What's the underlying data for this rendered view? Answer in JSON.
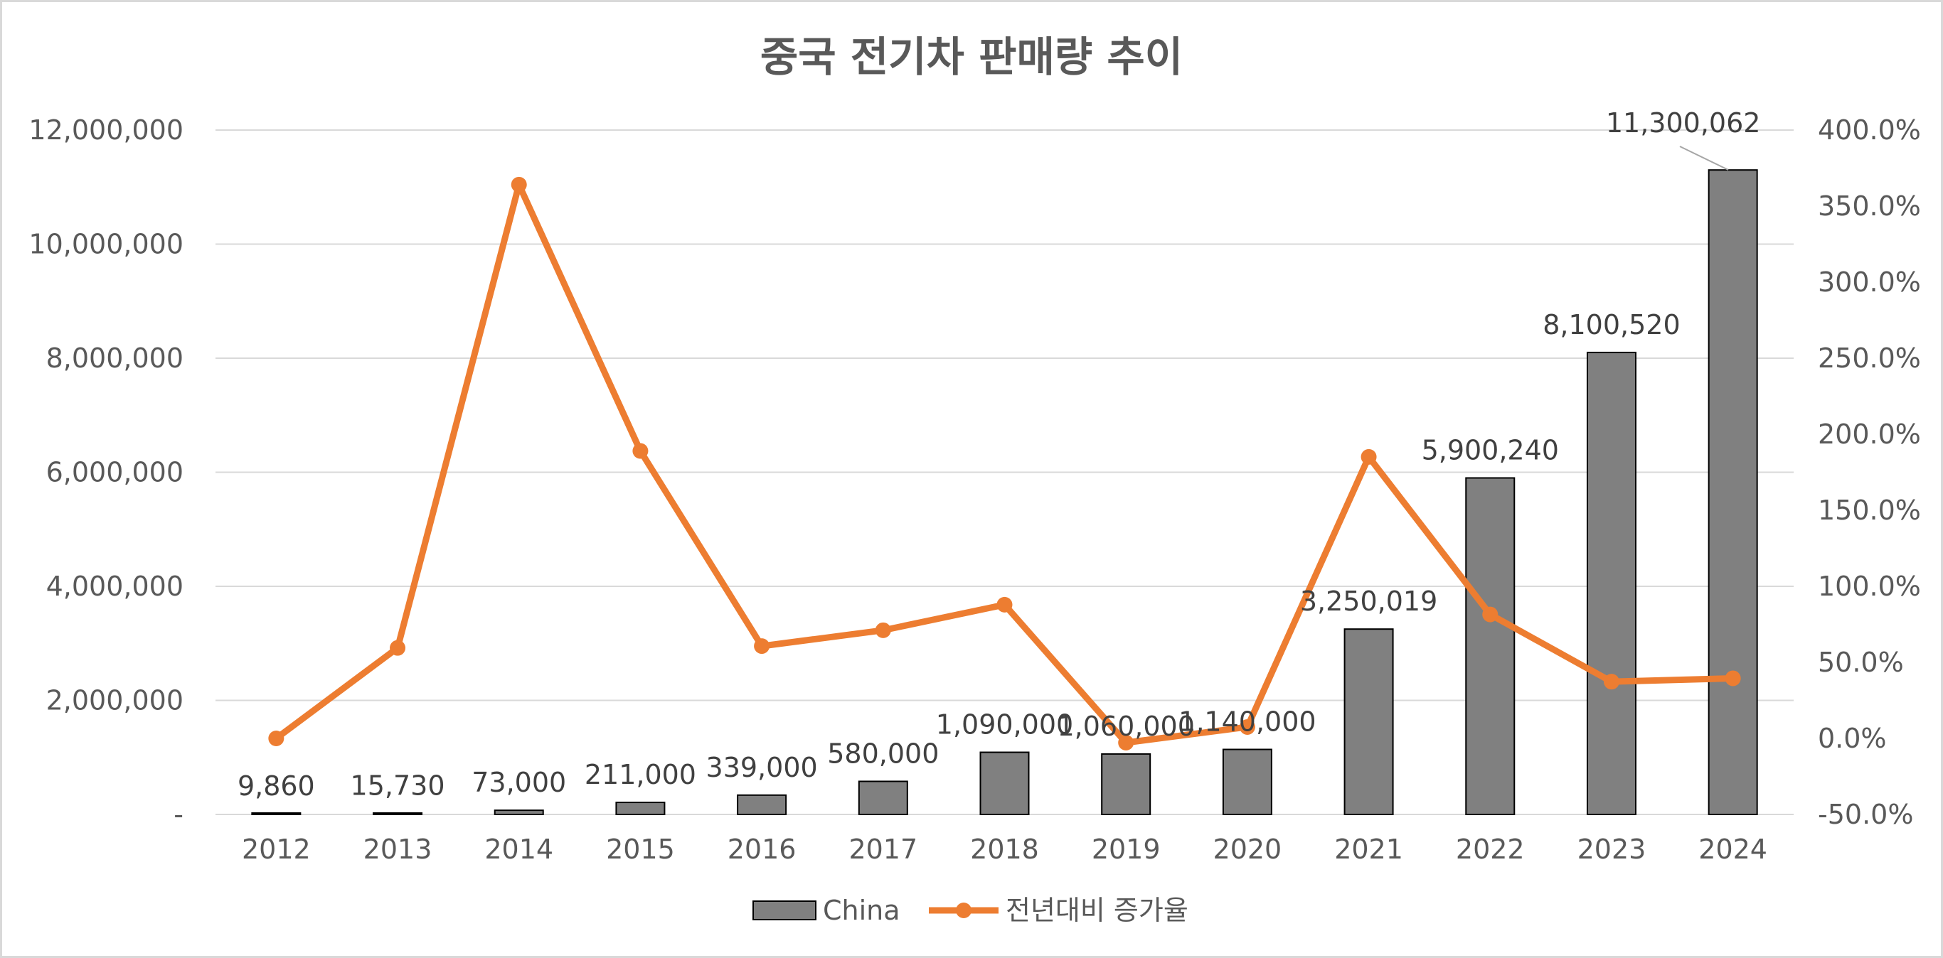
{
  "chart_data": {
    "type": "bar",
    "title": "중국 전기차 판매량 추이",
    "categories": [
      "2012",
      "2013",
      "2014",
      "2015",
      "2016",
      "2017",
      "2018",
      "2019",
      "2020",
      "2021",
      "2022",
      "2023",
      "2024"
    ],
    "series": [
      {
        "name": "China",
        "type": "bar",
        "axis": "left",
        "values": [
          9860,
          15730,
          73000,
          211000,
          339000,
          580000,
          1090000,
          1060000,
          1140000,
          3250019,
          5900240,
          8100520,
          11300062
        ],
        "labels": [
          "9,860",
          "15,730",
          "73,000",
          "211,000",
          "339,000",
          "580,000",
          "1,090,000",
          "1,060,000",
          "1,140,000",
          "3,250,019",
          "5,900,240",
          "8,100,520",
          "11,300,062"
        ]
      },
      {
        "name": "전년대비 증가율",
        "type": "line",
        "axis": "right",
        "values": [
          0.0,
          59.5,
          364.1,
          189.0,
          60.7,
          71.1,
          87.9,
          -2.8,
          7.5,
          185.1,
          81.5,
          37.3,
          39.5
        ]
      }
    ],
    "ylim_left": [
      0,
      12000000
    ],
    "ylim_right": [
      -50,
      400
    ],
    "left_ticks": [
      0,
      2000000,
      4000000,
      6000000,
      8000000,
      10000000,
      12000000
    ],
    "left_tick_labels": [
      "-",
      "2,000,000",
      "4,000,000",
      "6,000,000",
      "8,000,000",
      "10,000,000",
      "12,000,000"
    ],
    "right_ticks": [
      -50,
      0,
      50,
      100,
      150,
      200,
      250,
      300,
      350,
      400
    ],
    "right_tick_labels": [
      "-50.0%",
      "0.0%",
      "50.0%",
      "100.0%",
      "150.0%",
      "200.0%",
      "250.0%",
      "300.0%",
      "350.0%",
      "400.0%"
    ],
    "xlabel": "",
    "ylabel": "",
    "grid": true,
    "legend_position": "bottom",
    "colors": {
      "bar": "#808080",
      "line": "#ed7d31"
    }
  }
}
